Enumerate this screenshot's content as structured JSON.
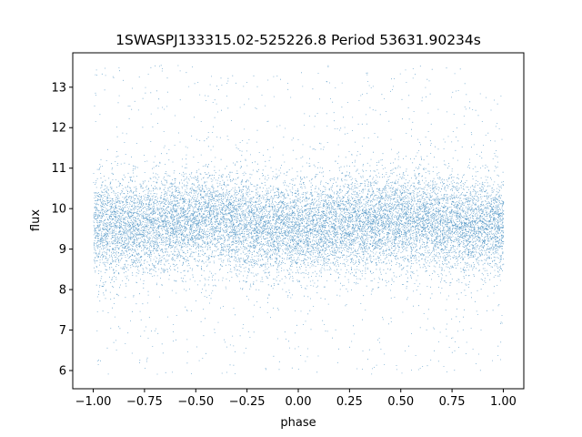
{
  "chart_data": {
    "type": "scatter",
    "title": "1SWASPJ133315.02-525226.8 Period 53631.90234s",
    "xlabel": "phase",
    "ylabel": "flux",
    "xlim": [
      -1.1,
      1.1
    ],
    "ylim": [
      5.55,
      13.85
    ],
    "x_ticks": [
      -1.0,
      -0.75,
      -0.5,
      -0.25,
      0.0,
      0.25,
      0.5,
      0.75,
      1.0
    ],
    "x_tick_labels": [
      "−1.00",
      "−0.75",
      "−0.50",
      "−0.25",
      "0.00",
      "0.25",
      "0.50",
      "0.75",
      "1.00"
    ],
    "y_ticks": [
      6,
      7,
      8,
      9,
      10,
      11,
      12,
      13
    ],
    "y_tick_labels": [
      "6",
      "7",
      "8",
      "9",
      "10",
      "11",
      "12",
      "13"
    ],
    "grid": false,
    "marker_color": "#1f77b4",
    "x_range": [
      -1.0,
      1.0
    ],
    "y_clip": [
      5.9,
      13.55
    ],
    "trend": [
      {
        "x": -1.0,
        "y": 9.55
      },
      {
        "x": -0.75,
        "y": 9.6
      },
      {
        "x": -0.5,
        "y": 9.75
      },
      {
        "x": -0.25,
        "y": 9.6
      },
      {
        "x": 0.0,
        "y": 9.5
      },
      {
        "x": 0.25,
        "y": 9.6
      },
      {
        "x": 0.5,
        "y": 9.75
      },
      {
        "x": 0.75,
        "y": 9.6
      },
      {
        "x": 1.0,
        "y": 9.55
      }
    ],
    "scatter_sd": 0.6
  }
}
